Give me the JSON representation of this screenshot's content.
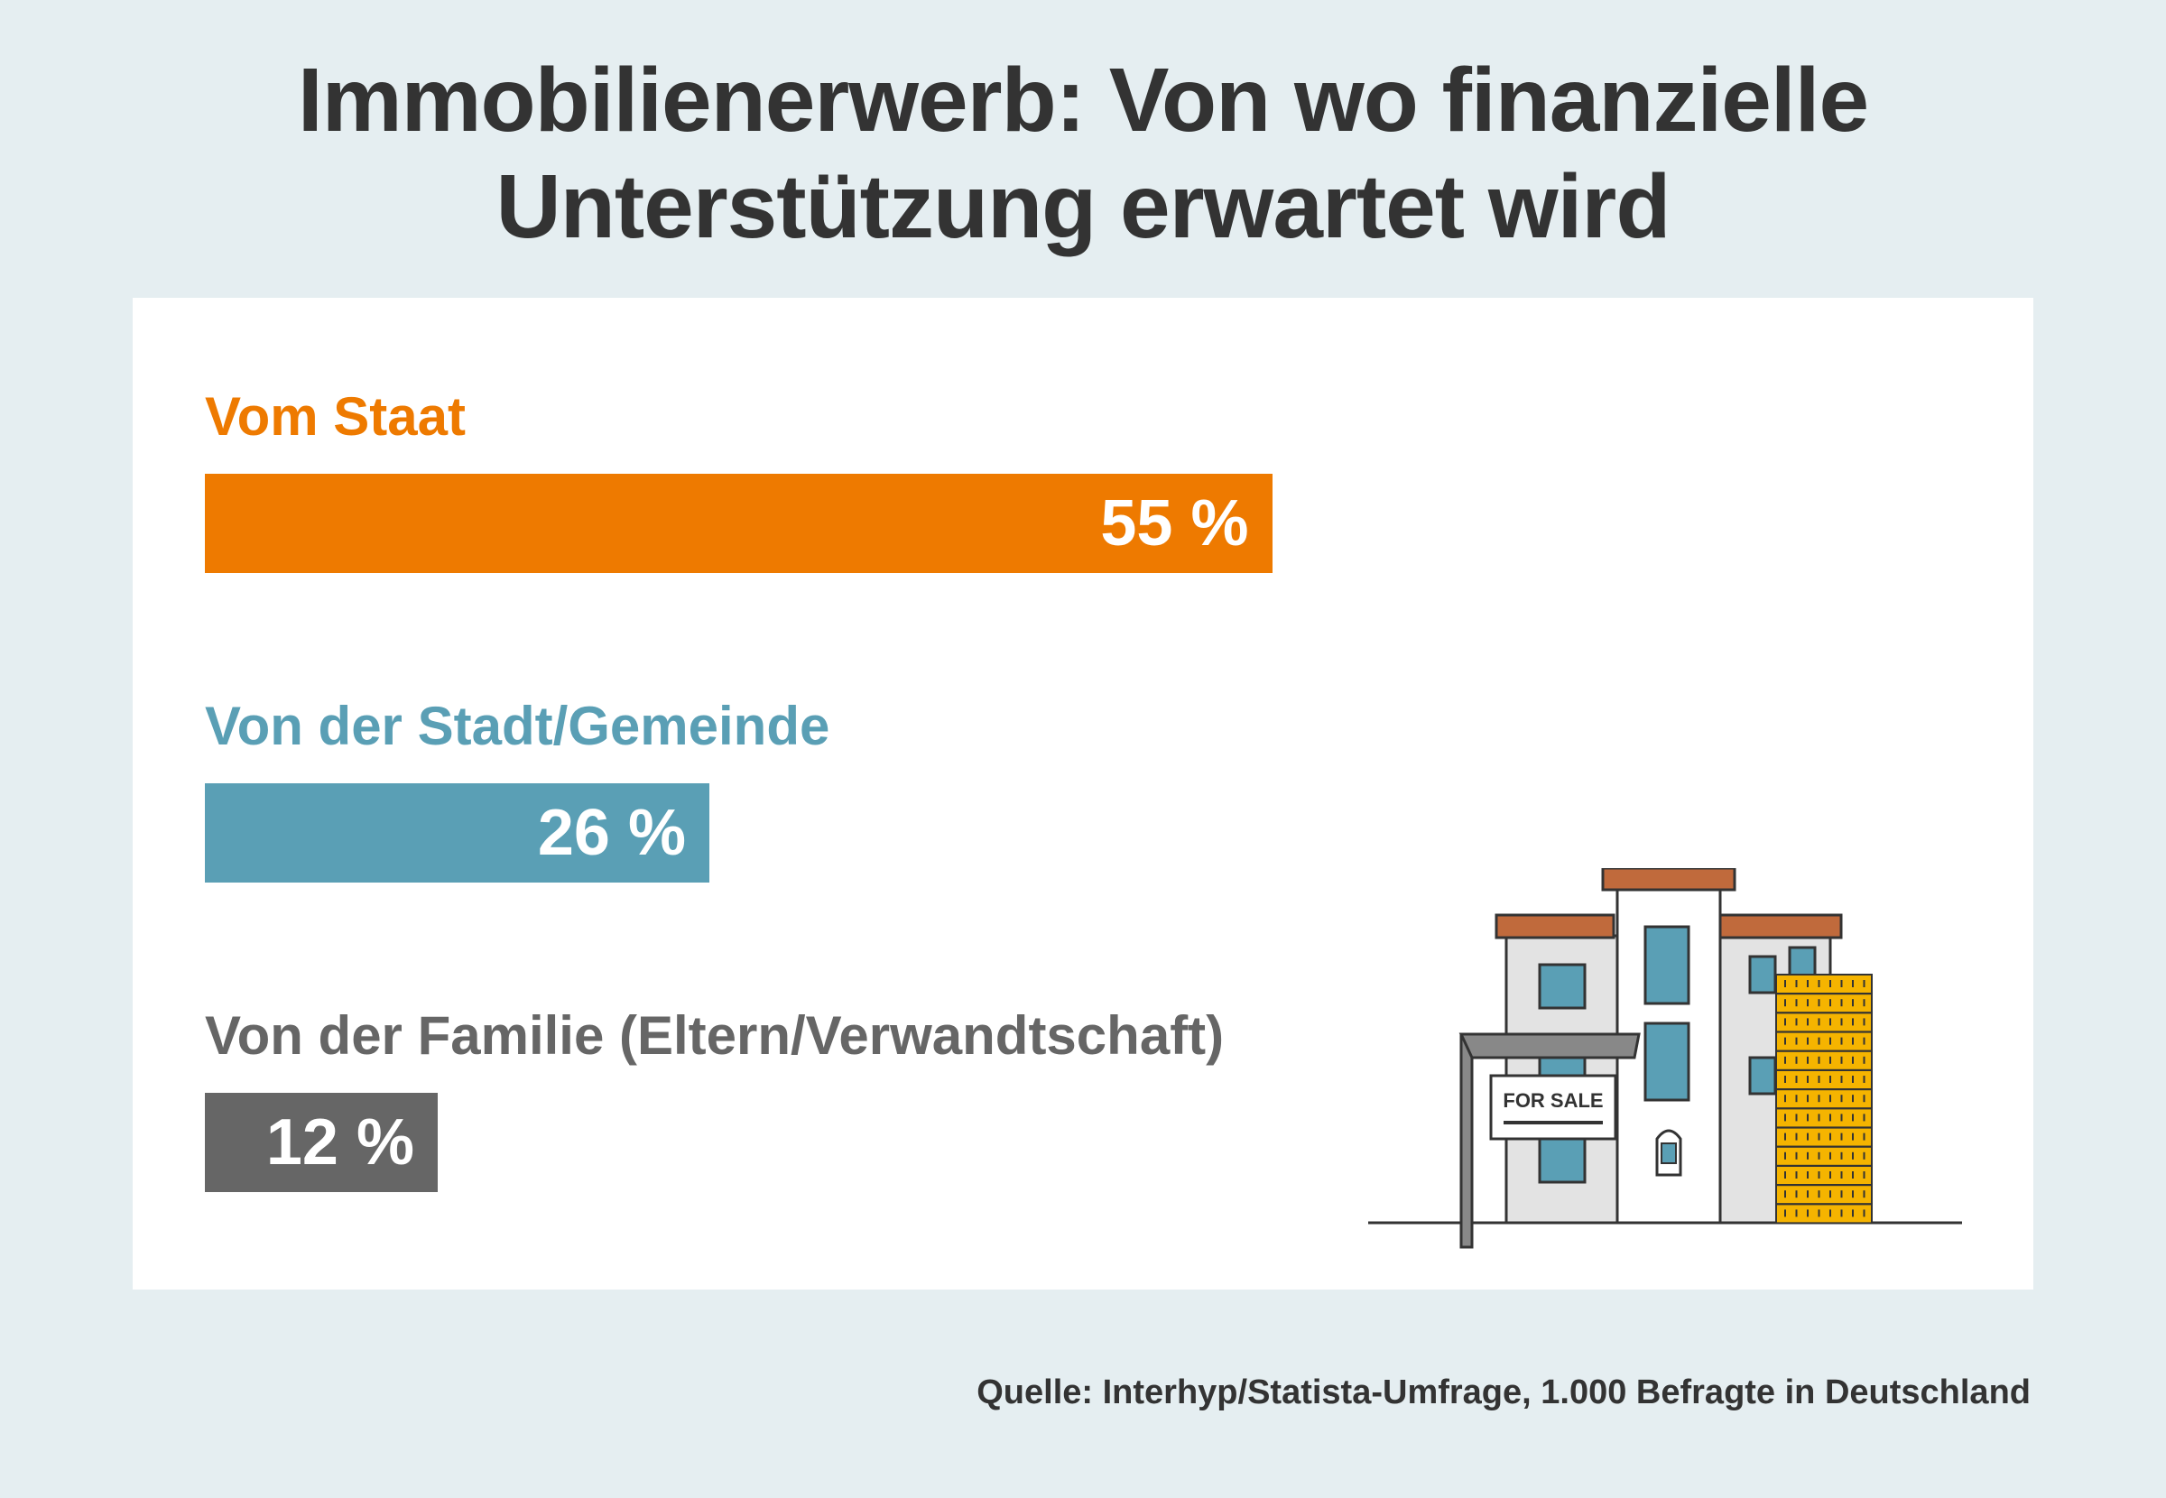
{
  "chart_data": {
    "type": "bar",
    "orientation": "horizontal",
    "title": [
      "Immobilienerwerb: Von wo finanzielle",
      "Unterstützung erwartet wird"
    ],
    "categories": [
      "Vom Staat",
      "Von der Stadt/Gemeinde",
      "Von der Familie (Eltern/Verwandtschaft)"
    ],
    "values": [
      55,
      26,
      12
    ],
    "value_labels": [
      "55 %",
      "26 %",
      "12 %"
    ],
    "unit": "%",
    "colors": [
      "#ee7a00",
      "#5a9fb5",
      "#666666"
    ],
    "label_colors": [
      "#ee7a00",
      "#5a9fb5",
      "#666666"
    ],
    "xlim": [
      0,
      100
    ],
    "grid": false,
    "legend": "none",
    "source": "Quelle: Interhyp/Statista-Umfrage, 1.000 Befragte in Deutschland"
  },
  "illustration": {
    "sign_text": "FOR SALE",
    "roof_color": "#c06a3c",
    "window_color": "#5a9fb5",
    "coin_color": "#f5b400"
  }
}
